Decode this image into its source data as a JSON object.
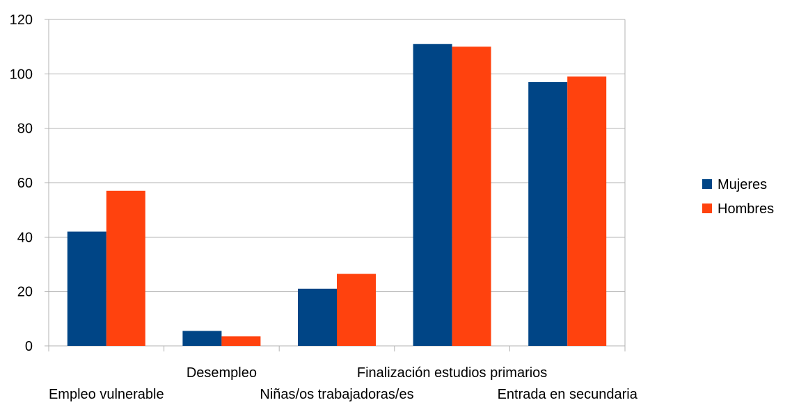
{
  "chart_data": {
    "type": "bar",
    "categories": [
      "Empleo vulnerable",
      "Desempleo",
      "Niñas/os trabajadoras/es",
      "Finalización estudios primarios",
      "Entrada en secundaria"
    ],
    "series": [
      {
        "name": "Mujeres",
        "color": "#004586",
        "values": [
          42,
          5.5,
          21,
          111,
          97
        ]
      },
      {
        "name": "Hombres",
        "color": "#ff420e",
        "values": [
          57,
          3.5,
          26.5,
          110,
          99
        ]
      }
    ],
    "ylim": [
      0,
      120
    ],
    "yticks": [
      0,
      20,
      40,
      60,
      80,
      100,
      120
    ],
    "grid": true,
    "legend_position": "right"
  }
}
